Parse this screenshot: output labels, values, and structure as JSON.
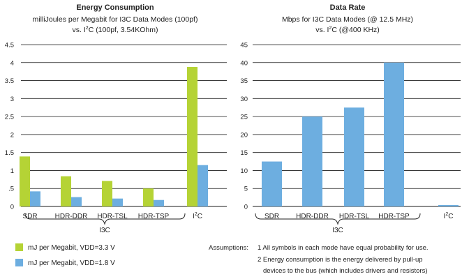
{
  "chart_data": [
    {
      "type": "bar",
      "title": "Energy Consumption",
      "subtitle_line1": "milliJoules per Megabit for I3C Data Modes (100pf)",
      "subtitle_line2_pre": "vs. I",
      "subtitle_line2_sup": "2",
      "subtitle_line2_post": "C (100pf, 3.54KOhm)",
      "categories": [
        "SDR",
        "HDR-DDR",
        "HDR-TSL",
        "HDR-TSP",
        "I2C"
      ],
      "category_labels": [
        {
          "main": "SDR",
          "sup": "",
          "post": ""
        },
        {
          "main": "HDR-DDR",
          "sup": "",
          "post": ""
        },
        {
          "main": "HDR-TSL",
          "sup": "",
          "post": ""
        },
        {
          "main": "HDR-TSP",
          "sup": "",
          "post": ""
        },
        {
          "main": "I",
          "sup": "2",
          "post": "C"
        }
      ],
      "group_label": "I3C",
      "ylim": [
        0,
        4.5
      ],
      "yticks": [
        0,
        0.5,
        1,
        1.5,
        2,
        2.5,
        3,
        3.5,
        4,
        4.5
      ],
      "ytick_labels": [
        "0",
        ".5",
        "1",
        "1.5",
        "2",
        "2.5",
        "3",
        "3.5",
        "4",
        "4.5"
      ],
      "grid": true,
      "series": [
        {
          "name": "mJ per Megabit, VDD=3.3 V",
          "color": "#b5d335",
          "values": [
            1.39,
            0.84,
            0.71,
            0.5,
            3.88
          ]
        },
        {
          "name": "mJ per Megabit, VDD=1.8 V",
          "color": "#6daee0",
          "values": [
            0.42,
            0.26,
            0.22,
            0.18,
            1.15
          ]
        }
      ]
    },
    {
      "type": "bar",
      "title": "Data Rate",
      "subtitle_line1": "Mbps for I3C Data Modes (@ 12.5 MHz)",
      "subtitle_line2_pre": "vs. I",
      "subtitle_line2_sup": "2",
      "subtitle_line2_post": "C (@400 KHz)",
      "categories": [
        "SDR",
        "HDR-DDR",
        "HDR-TSL",
        "HDR-TSP",
        "I2C"
      ],
      "category_labels": [
        {
          "main": "SDR",
          "sup": "",
          "post": ""
        },
        {
          "main": "HDR-DDR",
          "sup": "",
          "post": ""
        },
        {
          "main": "HDR-TSL",
          "sup": "",
          "post": ""
        },
        {
          "main": "HDR-TSP",
          "sup": "",
          "post": ""
        },
        {
          "main": "I",
          "sup": "2",
          "post": "C"
        }
      ],
      "group_label": "I3C",
      "ylim": [
        0,
        45
      ],
      "yticks": [
        0,
        5,
        10,
        15,
        20,
        25,
        30,
        35,
        40,
        45
      ],
      "ytick_labels": [
        "0",
        "5",
        "10",
        "15",
        "20",
        "25",
        "30",
        "35",
        "40",
        "45"
      ],
      "grid": true,
      "series": [
        {
          "color": "#6daee0",
          "values": [
            12.5,
            25,
            27.5,
            40,
            0.4
          ]
        }
      ]
    }
  ],
  "legend": [
    {
      "label": "mJ per Megabit, VDD=3.3 V",
      "color": "#b5d335"
    },
    {
      "label": "mJ per Megabit, VDD=1.8 V",
      "color": "#6daee0"
    }
  ],
  "notes": {
    "heading": "Assumptions:",
    "item1": "1 All symbols in each mode have equal probability for use.",
    "item2_line1": "2 Energy consumption is the energy delivered by pull-up",
    "item2_line2": "devices to the bus (which includes drivers and resistors)"
  },
  "colors": {
    "grid": "#1a1a1a",
    "text": "#222222"
  }
}
